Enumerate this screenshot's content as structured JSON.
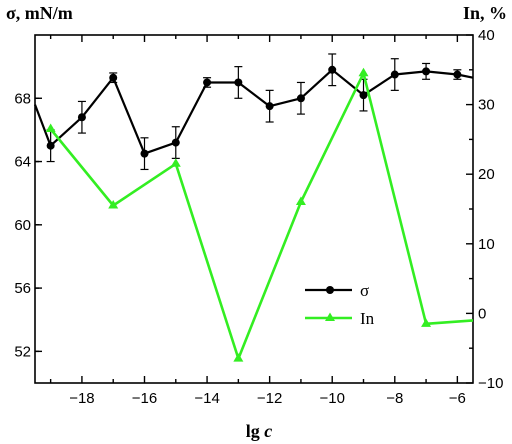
{
  "chart_data": {
    "type": "line",
    "left_axis_title": "σ, mN/m",
    "right_axis_title": "In, %",
    "xlabel_main": "lg ",
    "xlabel_italic": "c",
    "xlim": [
      -19.5,
      -5.5
    ],
    "ylim_left": [
      50,
      72
    ],
    "ylim_right": [
      -10,
      40
    ],
    "x_ticks": [
      -18,
      -16,
      -14,
      -12,
      -10,
      -8,
      -6
    ],
    "y_left_ticks": [
      52,
      56,
      60,
      64,
      68
    ],
    "y_right_ticks": [
      -10,
      0,
      10,
      20,
      30,
      40
    ],
    "grid": false,
    "legend_position": "bottom-right",
    "series": [
      {
        "name": "σ",
        "axis": "left",
        "color": "#000000",
        "marker": "circle",
        "x": [
          -19.5,
          -19,
          -18,
          -17,
          -16,
          -15,
          -14,
          -13,
          -12,
          -11,
          -10,
          -9,
          -8,
          -7,
          -6,
          -5.5
        ],
        "y": [
          67.6,
          65.0,
          66.8,
          69.3,
          64.5,
          65.2,
          69.0,
          69.0,
          67.5,
          68.0,
          69.8,
          68.2,
          69.5,
          69.7,
          69.5,
          69.3
        ],
        "error": [
          null,
          1.0,
          1.0,
          0.3,
          1.0,
          1.0,
          0.3,
          1.0,
          1.0,
          1.0,
          1.0,
          1.0,
          1.0,
          0.5,
          0.3,
          null
        ],
        "marker_mask": [
          false,
          true,
          true,
          true,
          true,
          true,
          true,
          true,
          true,
          true,
          true,
          true,
          true,
          true,
          true,
          false
        ]
      },
      {
        "name": "In",
        "axis": "right",
        "color": "#33ee22",
        "marker": "triangle",
        "x": [
          -19,
          -17,
          -15,
          -13,
          -11,
          -9,
          -7,
          -5.5
        ],
        "y": [
          26.5,
          15.5,
          21.5,
          -6.5,
          16,
          34.5,
          -1.5,
          -1
        ],
        "marker_mask": [
          true,
          true,
          true,
          true,
          true,
          true,
          true,
          false
        ]
      }
    ]
  }
}
